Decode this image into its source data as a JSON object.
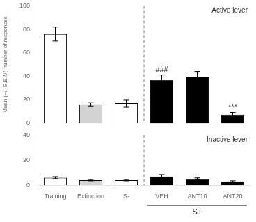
{
  "chart_data": [
    {
      "type": "bar",
      "title": "Active lever",
      "ylabel": "Mean (+/- S.E.M) number of responses",
      "categories": [
        "Training",
        "Extinction",
        "S-",
        "VEH",
        "ANT10",
        "ANT20"
      ],
      "values": [
        76,
        16,
        17,
        37,
        39,
        7
      ],
      "errors": [
        6,
        1.5,
        3,
        4,
        5,
        2
      ],
      "colors": [
        "white",
        "lightgray",
        "white",
        "black",
        "black",
        "black"
      ],
      "ylim": [
        0,
        100
      ],
      "yticks": [
        0,
        20,
        40,
        60,
        80,
        100
      ],
      "grid": false,
      "tick_labels": "y",
      "annotations": [
        {
          "text": "###",
          "category": "VEH"
        },
        {
          "text": "***",
          "category": "ANT20"
        }
      ],
      "divider": {
        "between": [
          "S-",
          "VEH"
        ],
        "line_style": "dashed",
        "color": "gray"
      }
    },
    {
      "type": "bar",
      "title": "Inactive lever",
      "categories": [
        "Training",
        "Extinction",
        "S-",
        "VEH",
        "ANT10",
        "ANT20"
      ],
      "values": [
        6,
        4,
        4,
        7,
        5,
        3
      ],
      "errors": [
        0.8,
        0.5,
        0.5,
        1.5,
        0.8,
        0.5
      ],
      "colors": [
        "white",
        "lightgray",
        "white",
        "black",
        "black",
        "black"
      ],
      "ylim": [
        0,
        40
      ],
      "yticks": [
        0,
        20,
        40
      ],
      "grid": false,
      "divider": {
        "between": [
          "S-",
          "VEH"
        ],
        "line_style": "dashed",
        "color": "gray"
      },
      "group_label": {
        "text": "S+",
        "categories": [
          "VEH",
          "ANT10",
          "ANT20"
        ]
      }
    }
  ]
}
